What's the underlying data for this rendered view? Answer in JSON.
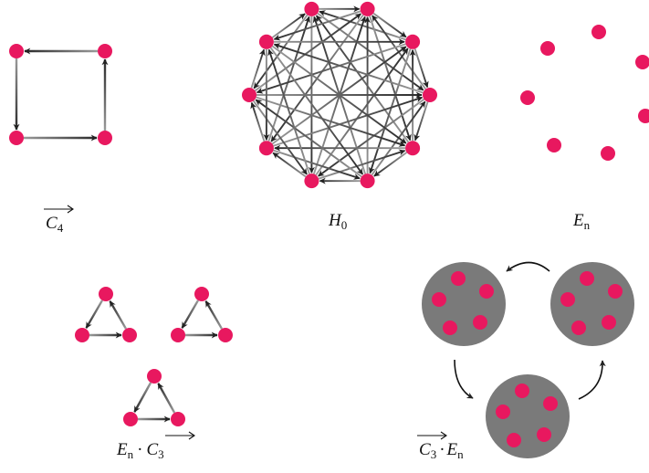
{
  "colors": {
    "node": "#e8185f",
    "edge_dark": "#2a2a2a",
    "edge_light": "#9a9a9a",
    "blob": "#7a7a7a",
    "label": "#111111"
  },
  "labels": {
    "c4": {
      "letter": "C",
      "sub": "4"
    },
    "h0": {
      "letter": "H",
      "sub": "0"
    },
    "en": {
      "letter": "E",
      "sub": "n"
    },
    "en_c3": {
      "e_letter": "E",
      "e_sub": "n",
      "dot": "·",
      "c_letter": "C",
      "c_sub": "3"
    },
    "c3_en": {
      "c_letter": "C",
      "c_sub": "3",
      "dot": "·",
      "e_letter": "E",
      "e_sub": "n"
    }
  }
}
